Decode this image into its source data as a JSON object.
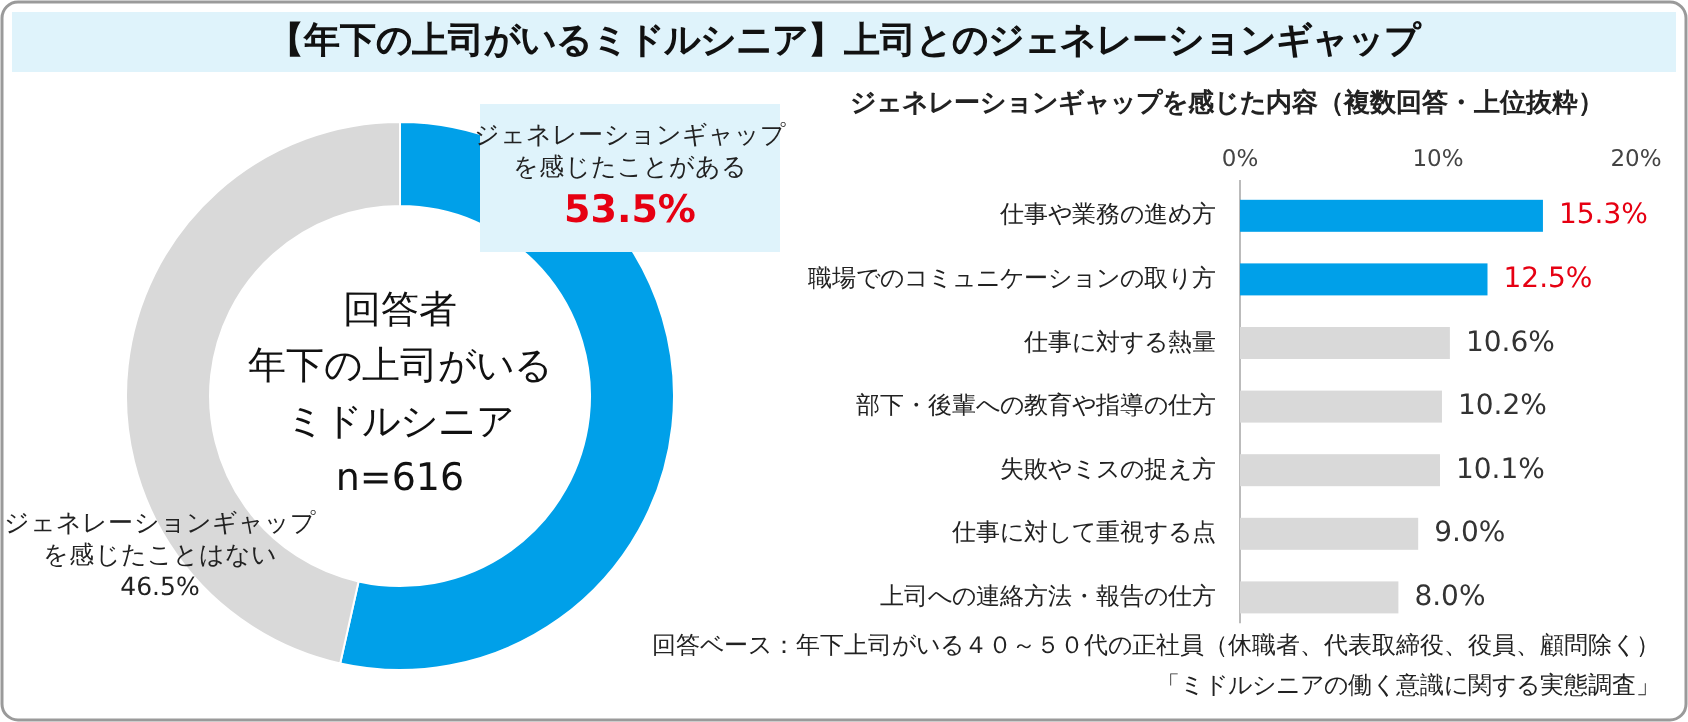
{
  "chart_data": [
    {
      "type": "donut",
      "title": "【年下の上司がいるミドルシニア】上司とのジェネレーションギャップ",
      "categories": [
        "ジェネレーションギャップを感じたことがある",
        "ジェネレーションギャップを感じたことはない"
      ],
      "values": [
        53.5,
        46.5
      ],
      "colors": [
        "#00a0e9",
        "#d9d9d9"
      ],
      "value_labels": [
        "53.5%",
        "46.5%"
      ],
      "annotations": [
        "回答者",
        "年下の上司がいる",
        "ミドルシニア",
        "n=616"
      ]
    },
    {
      "type": "bar",
      "orientation": "horizontal",
      "title": "ジェネレーションギャップを感じた内容（複数回答・上位抜粋）",
      "categories": [
        "仕事や業務の進め方",
        "職場でのコミュニケーションの取り方",
        "仕事に対する熱量",
        "部下・後輩への教育や指導の仕方",
        "失敗やミスの捉え方",
        "仕事に対して重視する点",
        "上司への連絡方法・報告の仕方"
      ],
      "values": [
        15.3,
        12.5,
        10.6,
        10.2,
        10.1,
        9.0,
        8.0
      ],
      "colors": [
        "#00a0e9",
        "#00a0e9",
        "#d9d9d9",
        "#d9d9d9",
        "#d9d9d9",
        "#d9d9d9",
        "#d9d9d9"
      ],
      "value_labels": [
        "15.3%",
        "12.5%",
        "10.6%",
        "10.2%",
        "10.1%",
        "9.0%",
        "8.0%"
      ],
      "xlim": [
        0,
        20
      ],
      "xticks": [
        {
          "value": 0,
          "label": "0%"
        },
        {
          "value": 10,
          "label": "10%"
        },
        {
          "value": 20,
          "label": "20%"
        }
      ],
      "annotations": [
        "回答ベース：年下上司がいる４０～５０代の正社員（休職者、代表取締役、役員、顧問除く）",
        "「ミドルシニアの働く意識に関する実態調査」"
      ]
    }
  ]
}
